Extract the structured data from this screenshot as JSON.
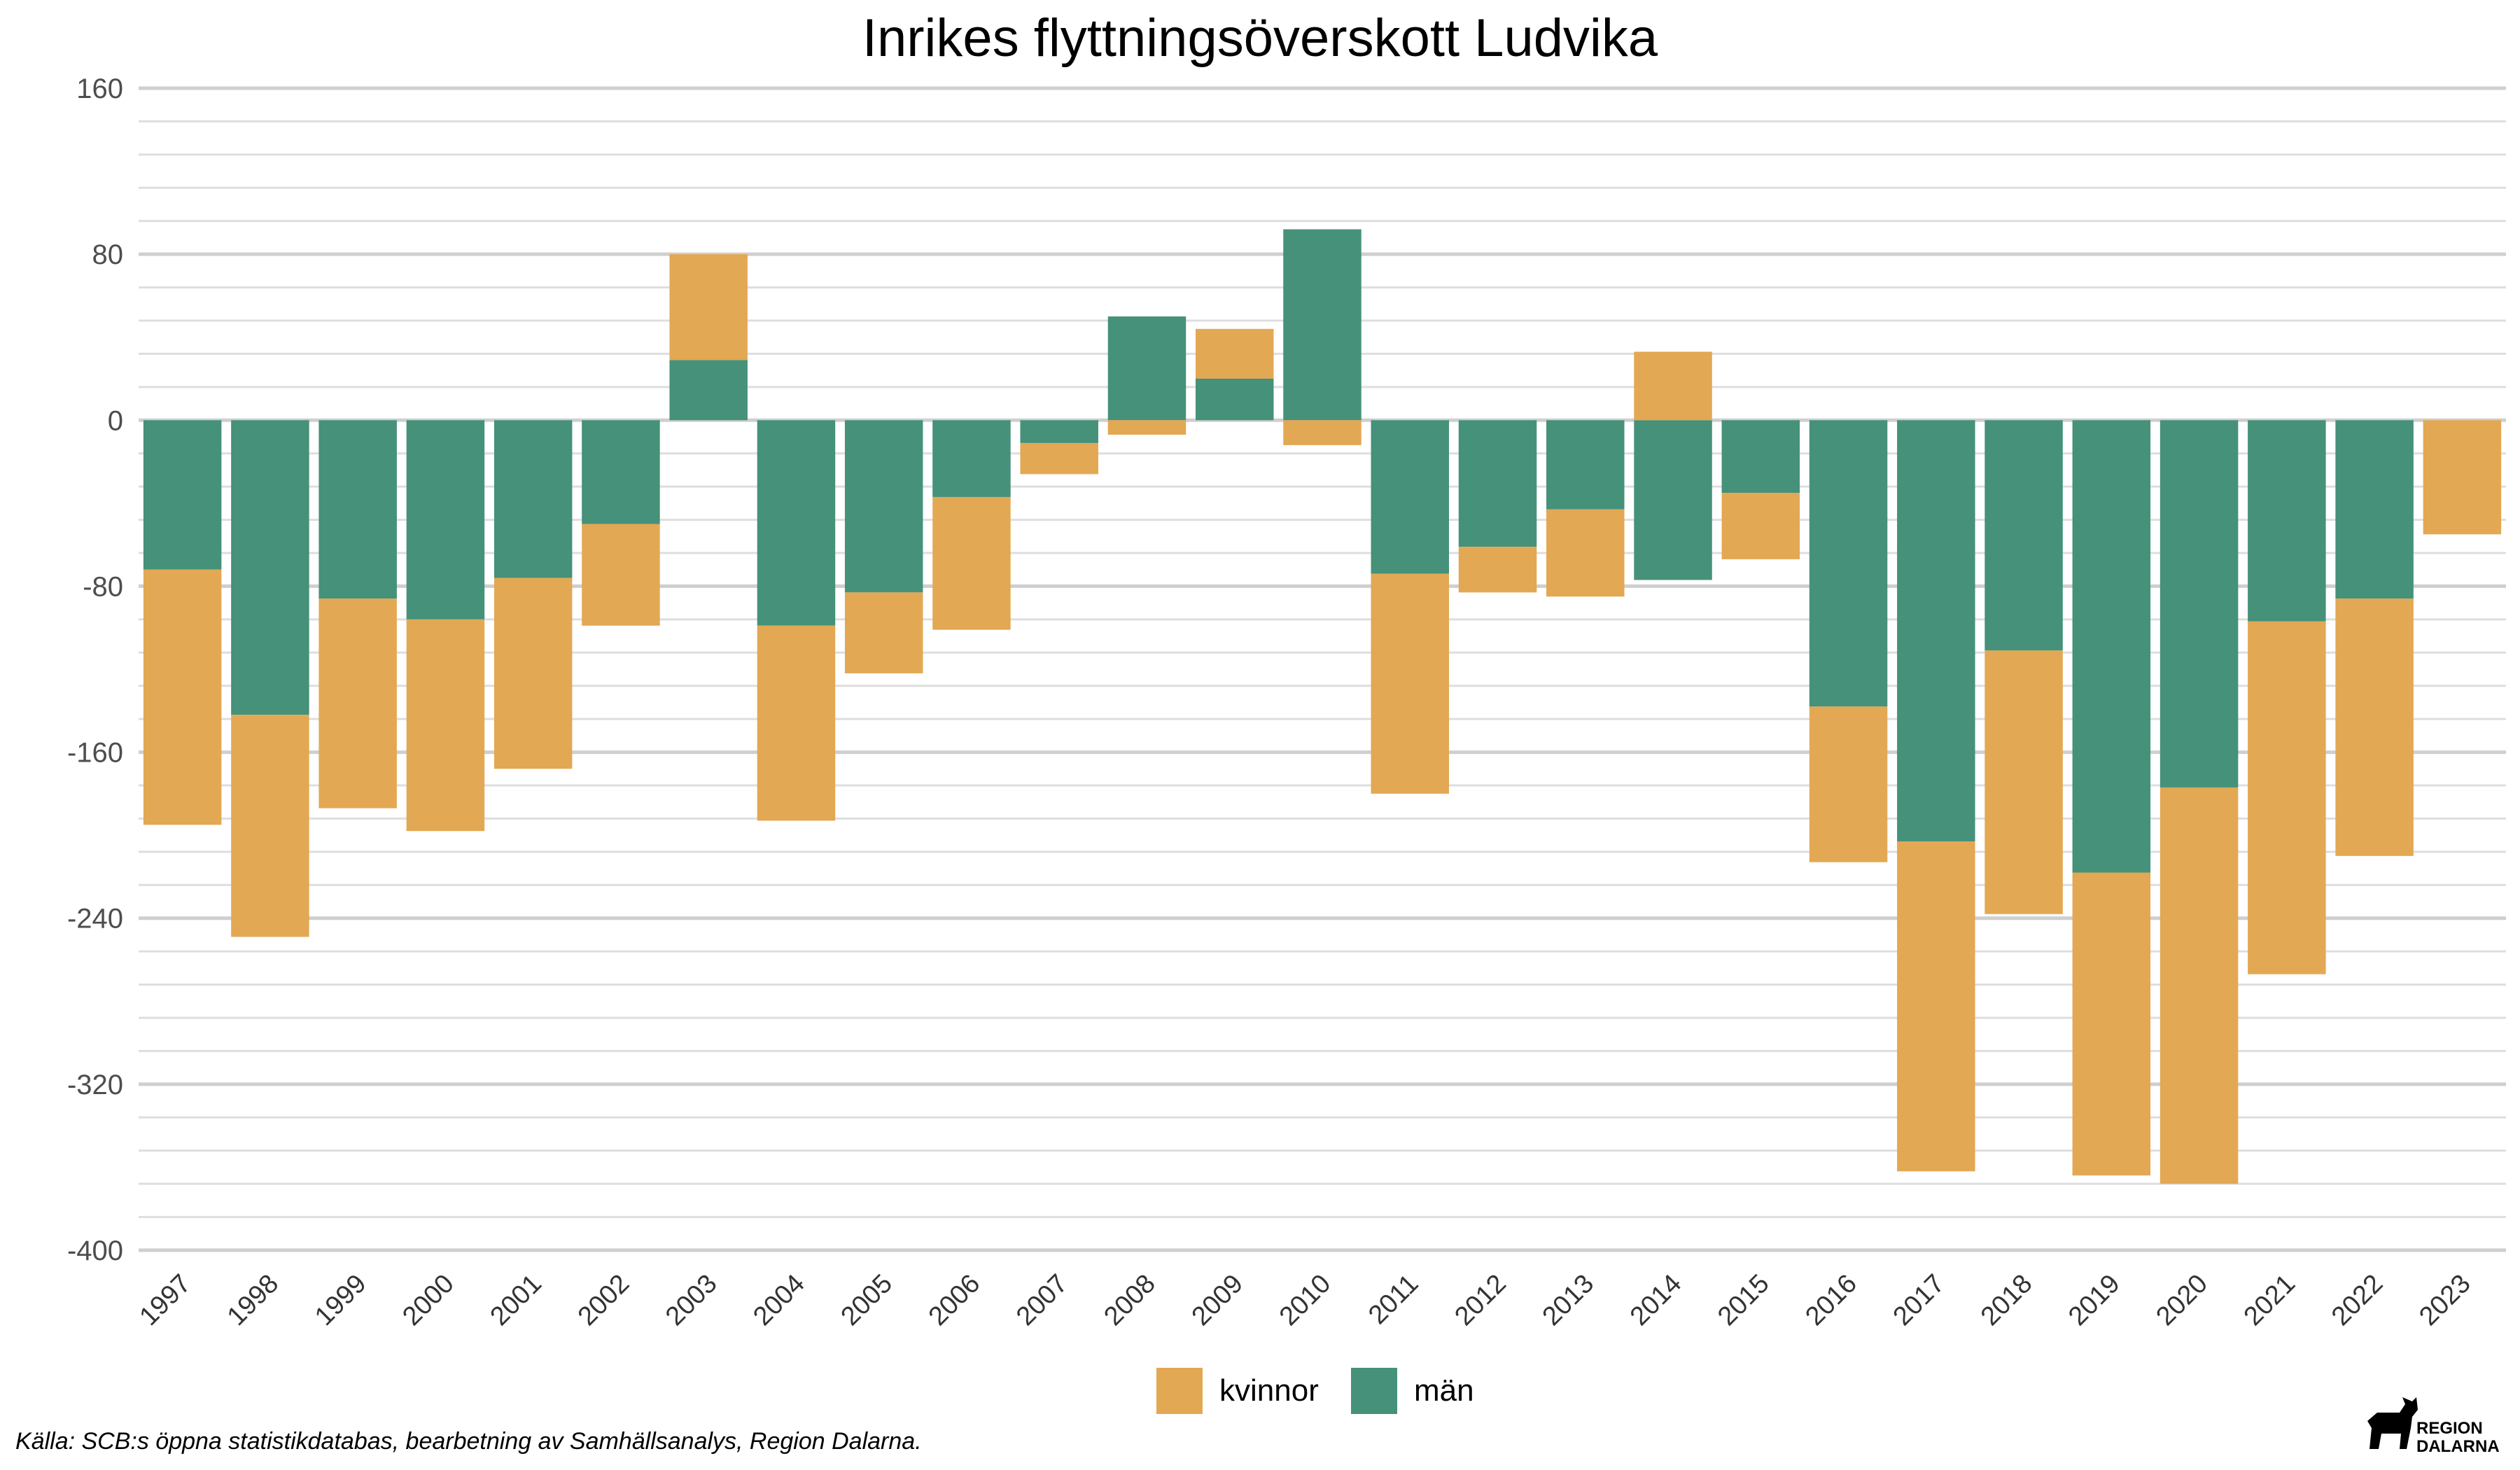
{
  "chart_data": {
    "type": "bar",
    "stacked": true,
    "title": "Inrikes flyttningsöverskott Ludvika",
    "xlabel": "",
    "ylabel": "",
    "ylim": [
      -400,
      160
    ],
    "yticks": [
      160,
      80,
      0,
      -80,
      -160,
      -240,
      -320,
      -400
    ],
    "ytick_labels": [
      "160",
      "80",
      "0",
      "-80",
      "-160",
      "-240",
      "-320",
      "-400"
    ],
    "minor_grid_step": 16,
    "grid": true,
    "legend_position": "bottom",
    "categories": [
      "1997",
      "1998",
      "1999",
      "2000",
      "2001",
      "2002",
      "2003",
      "2004",
      "2005",
      "2006",
      "2007",
      "2008",
      "2009",
      "2010",
      "2011",
      "2012",
      "2013",
      "2014",
      "2015",
      "2016",
      "2017",
      "2018",
      "2019",
      "2020",
      "2021",
      "2022",
      "2023"
    ],
    "series": [
      {
        "name": "män",
        "color": "#45917a",
        "values": [
          -72,
          -142,
          -86,
          -96,
          -76,
          -50,
          29,
          -99,
          -83,
          -37,
          -11,
          50,
          20,
          92,
          -74,
          -61,
          -43,
          -77,
          -35,
          -138,
          -203,
          -111,
          -218,
          -177,
          -97,
          -86,
          0
        ]
      },
      {
        "name": "kvinnor",
        "color": "#e3a853",
        "values": [
          -123,
          -107,
          -101,
          -102,
          -92,
          -49,
          51,
          -94,
          -39,
          -64,
          -15,
          -7,
          24,
          -12,
          -106,
          -22,
          -42,
          33,
          -32,
          -75,
          -159,
          -127,
          -146,
          -191,
          -170,
          -124,
          -55
        ]
      }
    ]
  },
  "caption": "Källa: SCB:s öppna statistikdatabas, bearbetning av Samhällsanalys, Region Dalarna.",
  "logo": {
    "line1": "REGION",
    "line2": "DALARNA",
    "icon": "dala-horse-icon"
  }
}
